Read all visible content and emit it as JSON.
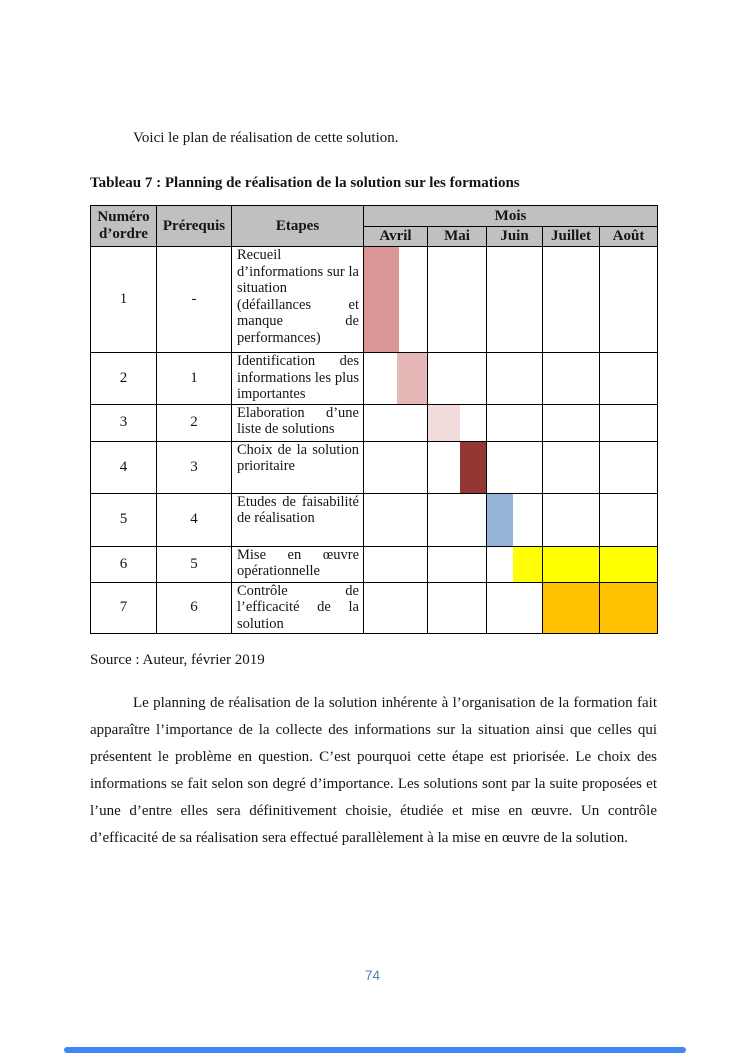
{
  "intro": "Voici le plan de réalisation de cette solution.",
  "table_title": "Tableau 7 : Planning de réalisation de la solution sur les formations",
  "table": {
    "headers": {
      "numero": "Numéro d’ordre",
      "prerequis": "Prérequis",
      "etapes": "Etapes",
      "mois_group": "Mois"
    },
    "months": [
      "Avril",
      "Mai",
      "Juin",
      "Juillet",
      "Août"
    ],
    "rows": [
      {
        "numero": "1",
        "prerequis": "-",
        "etape": "Recueil d’informations sur la situation (défaillances et manque de performances)",
        "bar_color": "#d99694",
        "gantt": [
          {
            "month": "Avril",
            "start_pct": 0,
            "width_pct": 56
          }
        ]
      },
      {
        "numero": "2",
        "prerequis": "1",
        "etape": "Identification des informations les plus importantes",
        "bar_color": "#e5b8b7",
        "gantt": [
          {
            "month": "Avril",
            "start_pct": 53,
            "width_pct": 47
          }
        ]
      },
      {
        "numero": "3",
        "prerequis": "2",
        "etape": "Elaboration d’une liste de solutions",
        "bar_color": "#f2dcdb",
        "gantt": [
          {
            "month": "Mai",
            "start_pct": 0,
            "width_pct": 55
          }
        ]
      },
      {
        "numero": "4",
        "prerequis": "3",
        "etape": "Choix de la solution prioritaire",
        "bar_color": "#943634",
        "gantt": [
          {
            "month": "Mai",
            "start_pct": 56,
            "width_pct": 44
          }
        ]
      },
      {
        "numero": "5",
        "prerequis": "4",
        "etape": "Etudes de faisabilité de réalisation",
        "bar_color": "#95b3d7",
        "gantt": [
          {
            "month": "Juin",
            "start_pct": 0,
            "width_pct": 47
          }
        ]
      },
      {
        "numero": "6",
        "prerequis": "5",
        "etape": "Mise en œuvre opérationnelle",
        "bar_color": "#ffff00",
        "gantt": [
          {
            "month": "Juin",
            "start_pct": 47,
            "width_pct": 53
          },
          {
            "month": "Juillet",
            "start_pct": 0,
            "width_pct": 100
          },
          {
            "month": "Août",
            "start_pct": 0,
            "width_pct": 100
          }
        ]
      },
      {
        "numero": "7",
        "prerequis": "6",
        "etape": "Contrôle de l’efficacité de la solution",
        "bar_color": "#ffc000",
        "gantt": [
          {
            "month": "Juillet",
            "start_pct": 0,
            "width_pct": 100
          },
          {
            "month": "Août",
            "start_pct": 0,
            "width_pct": 100
          }
        ]
      }
    ]
  },
  "source": "Source : Auteur, février 2019",
  "paragraph": "Le planning de réalisation de la solution inhérente à l’organisation de la formation fait apparaître l’importance de la collecte des informations sur la situation ainsi que celles qui présentent le problème en question. C’est pourquoi cette étape est priorisée. Le choix des informations se fait selon son degré d’importance. Les solutions sont par la suite proposées et l’une d’entre elles sera définitivement choisie, étudiée et mise en œuvre. Un contrôle d’efficacité de sa réalisation sera effectué parallèlement à la mise en œuvre de la solution.",
  "page_number": "74",
  "colors": {
    "header_bg": "#c0c0c0",
    "page_number": "#4f81bd",
    "scrollbar": "#4285f4"
  }
}
